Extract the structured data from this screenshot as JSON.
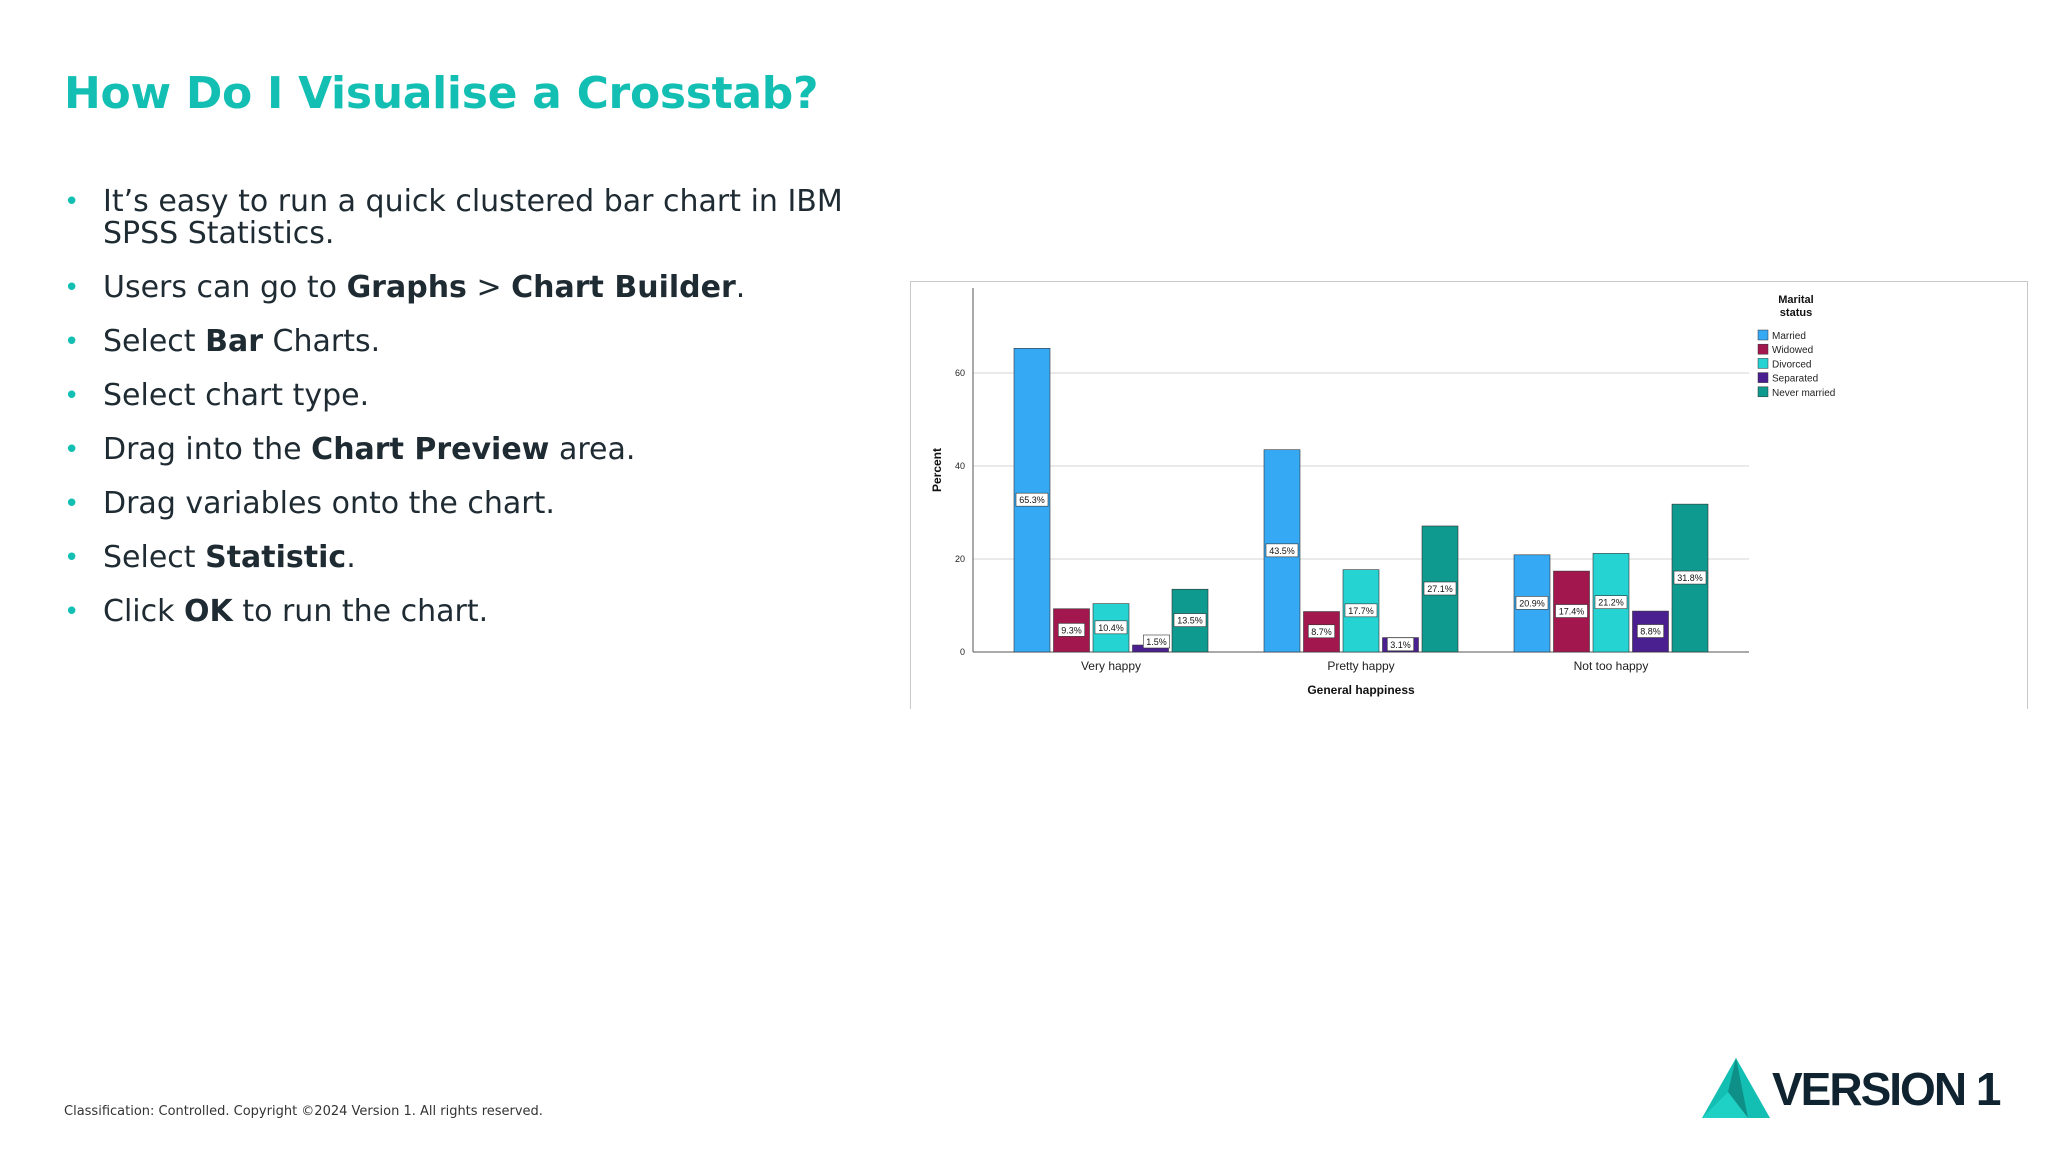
{
  "title": "How Do I Visualise a Crosstab?",
  "bullets": [
    [
      {
        "t": "It’s easy to run a quick clustered bar chart in IBM SPSS Statistics."
      }
    ],
    [
      {
        "t": "Users can go to "
      },
      {
        "t": "Graphs",
        "b": true
      },
      {
        "t": " > "
      },
      {
        "t": "Chart Builder",
        "b": true
      },
      {
        "t": "."
      }
    ],
    [
      {
        "t": "Select "
      },
      {
        "t": "Bar",
        "b": true
      },
      {
        "t": " Charts."
      }
    ],
    [
      {
        "t": "Select chart type."
      }
    ],
    [
      {
        "t": "Drag into the "
      },
      {
        "t": "Chart Preview",
        "b": true
      },
      {
        "t": " area."
      }
    ],
    [
      {
        "t": "Drag variables onto the chart."
      }
    ],
    [
      {
        "t": "Select "
      },
      {
        "t": "Statistic",
        "b": true
      },
      {
        "t": "."
      }
    ],
    [
      {
        "t": "Click "
      },
      {
        "t": "OK",
        "b": true
      },
      {
        "t": " to run the chart."
      }
    ]
  ],
  "bullet_glyph": "•",
  "footer": "Classification: Controlled. Copyright ©2024 Version 1. All rights reserved.",
  "logo": {
    "text": "VERSION 1",
    "colors": [
      "#13bfb2",
      "#0f2430"
    ]
  },
  "accent_color": "#13bfb2",
  "chart_data": {
    "type": "bar",
    "categories": [
      "Very happy",
      "Pretty happy",
      "Not too happy"
    ],
    "xlabel": "General happiness",
    "ylabel": "Percent",
    "ylim": [
      0,
      70
    ],
    "yticks": [
      0,
      20,
      40,
      60
    ],
    "grid": true,
    "legend_title": "Marital status",
    "legend_position": "top-right",
    "series": [
      {
        "name": "Married",
        "color": "#36a9f5",
        "values": [
          65.3,
          43.5,
          20.9
        ],
        "labels": [
          "65.3%",
          "43.5%",
          "20.9%"
        ]
      },
      {
        "name": "Widowed",
        "color": "#a3174f",
        "values": [
          9.3,
          8.7,
          17.4
        ],
        "labels": [
          "9.3%",
          "8.7%",
          "17.4%"
        ]
      },
      {
        "name": "Divorced",
        "color": "#26d3d3",
        "values": [
          10.4,
          17.7,
          21.2
        ],
        "labels": [
          "10.4%",
          "17.7%",
          "21.2%"
        ]
      },
      {
        "name": "Separated",
        "color": "#4a1f8f",
        "values": [
          1.5,
          3.1,
          8.8
        ],
        "labels": [
          "1.5%",
          "3.1%",
          "8.8%"
        ]
      },
      {
        "name": "Never married",
        "color": "#0e9a8f",
        "values": [
          13.5,
          27.1,
          31.8
        ],
        "labels": [
          "13.5%",
          "27.1%",
          "31.8%"
        ]
      }
    ]
  }
}
